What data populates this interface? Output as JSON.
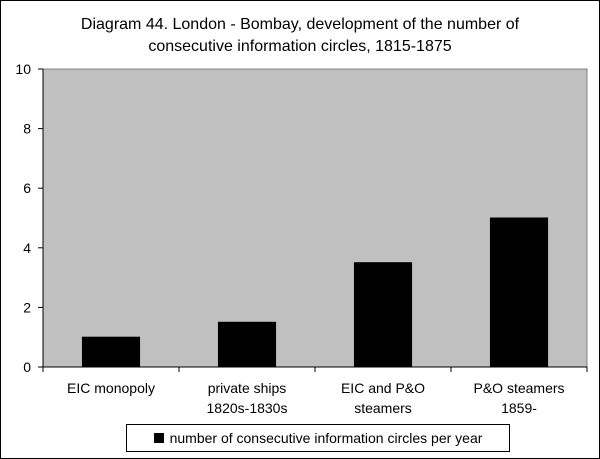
{
  "chart_data": {
    "type": "bar",
    "title_lines": [
      "Diagram 44. London - Bombay, development of the number of",
      "consecutive information circles, 1815-1875"
    ],
    "categories": [
      [
        "EIC monopoly"
      ],
      [
        "private ships",
        "1820s-1830s"
      ],
      [
        "EIC and P&O",
        "steamers"
      ],
      [
        "P&O steamers",
        "1859-"
      ]
    ],
    "series": [
      {
        "name": "number of consecutive information circles per year",
        "values": [
          1,
          1.5,
          3.5,
          5
        ],
        "color": "#000000"
      }
    ],
    "ylim": [
      0,
      10
    ],
    "yticks": [
      0,
      2,
      4,
      6,
      8,
      10
    ],
    "grid": false,
    "plot_background": "#c0c0c0",
    "legend_position": "bottom"
  }
}
